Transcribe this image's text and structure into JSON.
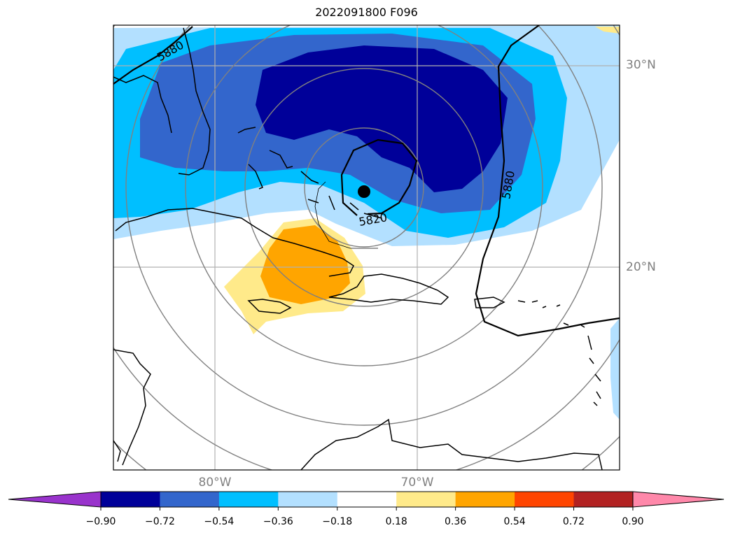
{
  "title": "2022091800 F096",
  "map": {
    "lat_labels": [
      {
        "text": "30°N",
        "lat": 30
      },
      {
        "text": "20°N",
        "lat": 20
      }
    ],
    "lon_labels": [
      {
        "text": "80°W",
        "lon": -80
      },
      {
        "text": "70°W",
        "lon": -70
      }
    ],
    "contour_labels": [
      {
        "text": "5880",
        "where": "northwest"
      },
      {
        "text": "5880",
        "where": "east"
      },
      {
        "text": "5820",
        "where": "center"
      }
    ],
    "center_marker": "storm-center",
    "colors": {
      "land": "#000000",
      "grid": "#b0b0b0",
      "range_rings": "#808080"
    }
  },
  "colorbar": {
    "ticks": [
      "−0.90",
      "−0.72",
      "−0.54",
      "−0.36",
      "−0.18",
      "0.18",
      "0.36",
      "0.54",
      "0.72",
      "0.90"
    ],
    "colors": [
      "#9933cc",
      "#000099",
      "#3366cc",
      "#00bfff",
      "#b3e0ff",
      "#ffffff",
      "#ffea8a",
      "#ffa500",
      "#ff4500",
      "#b22222",
      "#ff88aa"
    ]
  }
}
